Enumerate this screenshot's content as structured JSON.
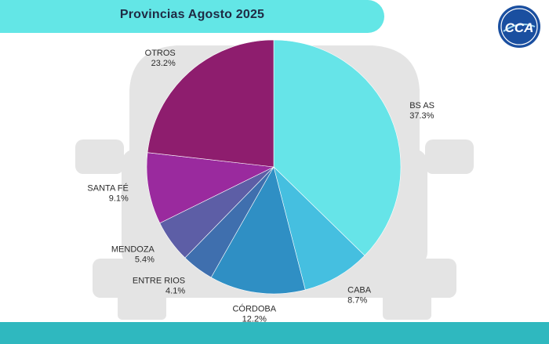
{
  "header": {
    "title": "Provincias Agosto 2025"
  },
  "logo": {
    "text": "CCA",
    "color": "#1a4fa0"
  },
  "colors": {
    "header": "#63e6e6",
    "footer": "#2fb8bf",
    "car_silhouette": "#e4e4e4"
  },
  "chart_data": {
    "type": "pie",
    "title": "Provincias Agosto 2025",
    "start": "top, clockwise",
    "slices": [
      {
        "label": "BS AS",
        "value": 37.3,
        "value_label": "37.3%",
        "color": "#66e4e8"
      },
      {
        "label": "CABA",
        "value": 8.7,
        "value_label": "8.7%",
        "color": "#45bfe0"
      },
      {
        "label": "CÓRDOBA",
        "value": 12.2,
        "value_label": "12.2%",
        "color": "#2f8fc4"
      },
      {
        "label": "ENTRE RIOS",
        "value": 4.1,
        "value_label": "4.1%",
        "color": "#3f6fae"
      },
      {
        "label": "MENDOZA",
        "value": 5.4,
        "value_label": "5.4%",
        "color": "#5d5ea6"
      },
      {
        "label": "SANTA FÉ",
        "value": 9.1,
        "value_label": "9.1%",
        "color": "#9a2a9e"
      },
      {
        "label": "OTROS",
        "value": 23.2,
        "value_label": "23.2%",
        "color": "#8e1d6e"
      }
    ]
  }
}
